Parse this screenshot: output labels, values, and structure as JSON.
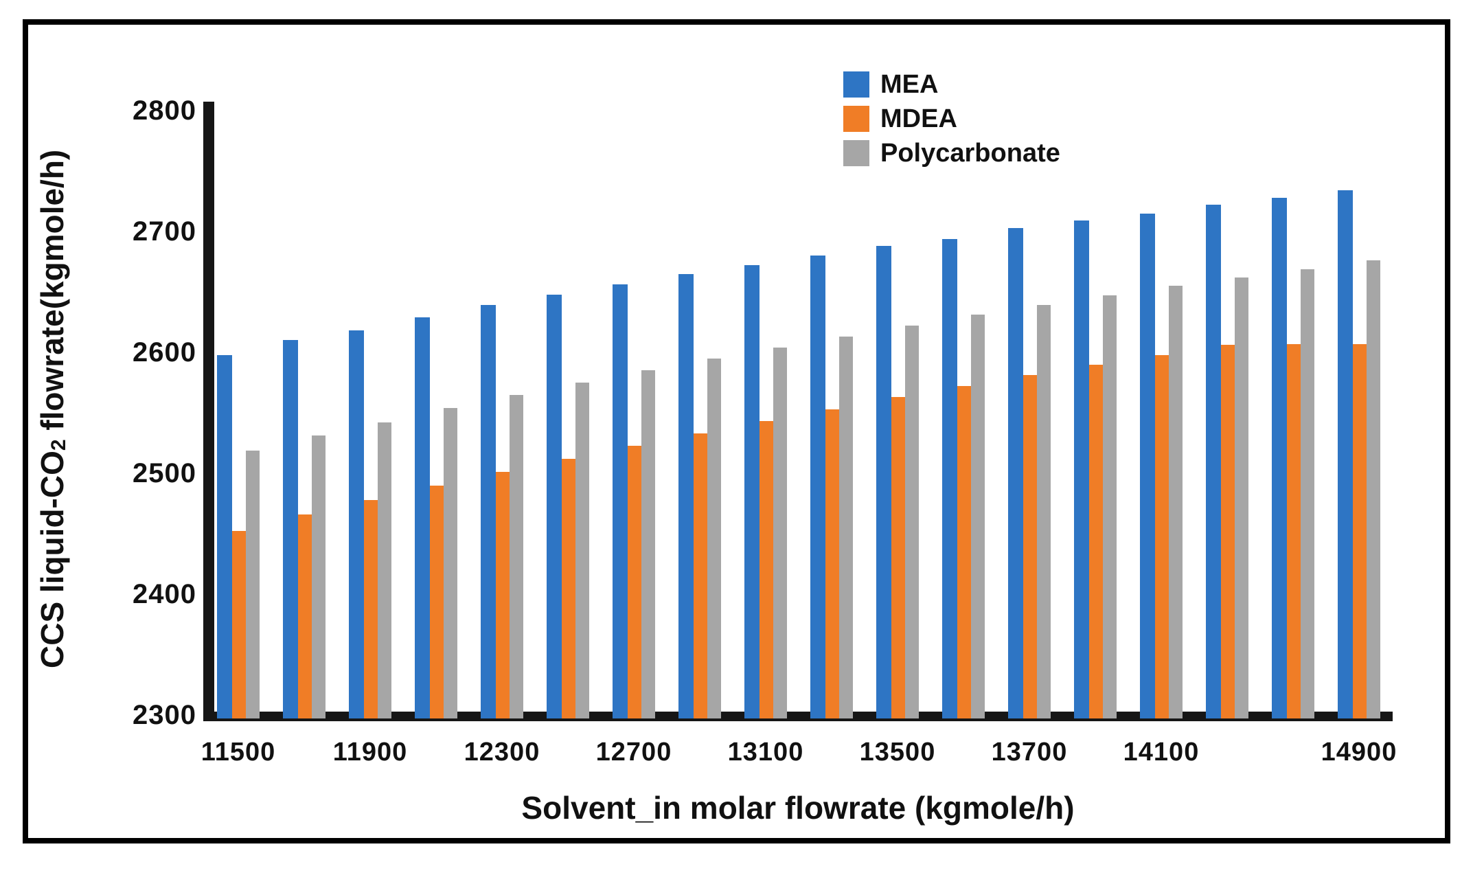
{
  "figure": {
    "background": "#ffffff",
    "border_color": "#000000",
    "axis_color": "#161616",
    "text_color": "#111111"
  },
  "chart_data": {
    "type": "bar",
    "title": "",
    "xlabel": "Solvent_in molar flowrate (kgmole/h)",
    "ylabel": "CCS liquid-CO2 flowrate(kgmole/h)",
    "ylabel_parts": {
      "prefix": "CCS liquid-CO",
      "sub": "2",
      "suffix": " flowrate(kgmole/h)"
    },
    "ylim": [
      2300,
      2800
    ],
    "y_ticks": [
      "2800",
      "2700",
      "2600",
      "2500",
      "2400",
      "2300"
    ],
    "grid": false,
    "legend_position": "top-center-inside",
    "n_groups": 18,
    "x_tick_labels": [
      {
        "label": "11500",
        "group": 0
      },
      {
        "label": "11900",
        "group": 2
      },
      {
        "label": "12300",
        "group": 4
      },
      {
        "label": "12700",
        "group": 6
      },
      {
        "label": "13100",
        "group": 8
      },
      {
        "label": "13500",
        "group": 10
      },
      {
        "label": "13700",
        "group": 12
      },
      {
        "label": "14100",
        "group": 14
      },
      {
        "label": "14900",
        "group": 17
      }
    ],
    "series": [
      {
        "name": "MEA",
        "color": "#2E75C4",
        "values": [
          2598,
          2610,
          2618,
          2629,
          2639,
          2648,
          2656,
          2665,
          2672,
          2680,
          2688,
          2694,
          2703,
          2709,
          2715,
          2722,
          2728,
          2734
        ]
      },
      {
        "name": "MDEA",
        "color": "#F07D26",
        "values": [
          2452,
          2466,
          2478,
          2490,
          2501,
          2512,
          2523,
          2533,
          2543,
          2553,
          2563,
          2572,
          2581,
          2590,
          2598,
          2606,
          2607,
          2607
        ]
      },
      {
        "name": "Polycarbonate",
        "color": "#A6A6A6",
        "values": [
          2519,
          2531,
          2542,
          2554,
          2565,
          2575,
          2585,
          2595,
          2604,
          2613,
          2622,
          2631,
          2639,
          2647,
          2655,
          2662,
          2669,
          2676
        ]
      }
    ]
  }
}
